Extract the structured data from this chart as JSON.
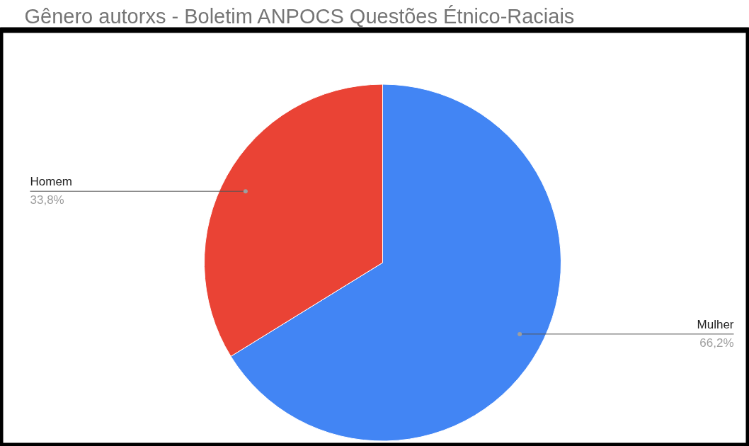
{
  "chart_data": {
    "type": "pie",
    "title": "Gênero autorxs - Boletim ANPOCS Questões Étnico-Raciais",
    "categories": [
      "Mulher",
      "Homem"
    ],
    "values": [
      66.2,
      33.8
    ],
    "colors": [
      "#4285f4",
      "#ea4335"
    ],
    "value_labels": [
      "66,2%",
      "33,8%"
    ]
  }
}
